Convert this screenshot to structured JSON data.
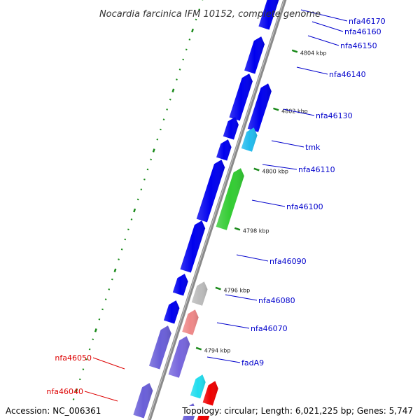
{
  "title": "Nocardia farcinica IFM 10152, complete genome",
  "accession": "Accession: NC_006361",
  "summary": "Topology: circular; Length: 6,021,225 bp; Genes: 5,747",
  "colors": {
    "backbone": "#8a8a8a",
    "cds": "#0000ee",
    "cds_alt": "#6a5fd8",
    "tick": "#1a8a1a",
    "label_blue": "#0000cc",
    "label_red": "#dd0000"
  },
  "ticks": [
    "4804 kbp",
    "4802 kbp",
    "4800 kbp",
    "4798 kbp",
    "4796 kbp",
    "4794 kbp"
  ],
  "genes": [
    {
      "label": "nfa46170",
      "color": "#0000ee",
      "label_color": "#0000cc"
    },
    {
      "label": "nfa46160",
      "color": "#0000ee",
      "label_color": "#0000cc"
    },
    {
      "label": "nfa46150",
      "color": "#0000ee",
      "label_color": "#0000cc"
    },
    {
      "label": "nfa46140",
      "color": "#0000ee",
      "label_color": "#0000cc"
    },
    {
      "label": "nfa46130",
      "color": "#0000ee",
      "label_color": "#0000cc"
    },
    {
      "label": "tmk",
      "color": "#22bbee",
      "label_color": "#0000cc"
    },
    {
      "label": "nfa46110",
      "color": "#0000ee",
      "label_color": "#0000cc"
    },
    {
      "label": "nfa46100",
      "color": "#33cc33",
      "label_color": "#0000cc"
    },
    {
      "label": "nfa46090",
      "color": "#0000ee",
      "label_color": "#0000cc"
    },
    {
      "label": "nfa46080",
      "color": "#bbbbbb",
      "label_color": "#0000cc"
    },
    {
      "label": "nfa46070",
      "color": "#ee8888",
      "label_color": "#0000cc"
    },
    {
      "label": "fadA9",
      "color": "#7766dd",
      "label_color": "#0000cc"
    },
    {
      "label": "nfa46050",
      "color": "#22ddee",
      "label_color": "#dd0000"
    },
    {
      "label": "nfa46040",
      "color": "#ee0000",
      "label_color": "#dd0000"
    }
  ]
}
